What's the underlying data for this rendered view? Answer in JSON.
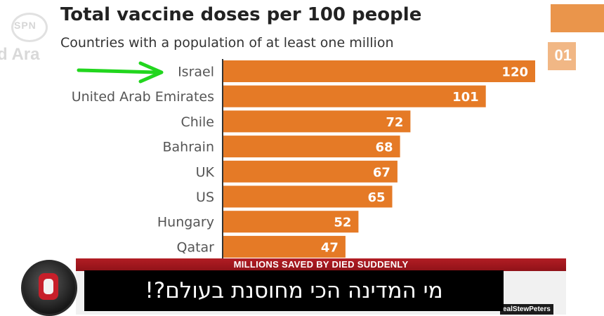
{
  "background": {
    "left_text": "d Ara",
    "logo_text": "SPN",
    "right_value_partial": "01"
  },
  "chart_data": {
    "type": "bar",
    "orientation": "horizontal",
    "title": "Total vaccine doses per 100 people",
    "subtitle": "Countries with a population of at least one million",
    "categories": [
      "Israel",
      "United Arab Emirates",
      "Chile",
      "Bahrain",
      "UK",
      "US",
      "Hungary",
      "Qatar"
    ],
    "values": [
      120,
      101,
      72,
      68,
      67,
      65,
      52,
      47
    ],
    "xlim": [
      0,
      120
    ],
    "grid": false,
    "bar_color": "#e57a26",
    "annotation_arrow_color": "#22d61e",
    "annotation": "arrow pointing to Israel"
  },
  "overlay": {
    "ticker": "MILLIONS SAVED BY DIED SUDDENLY",
    "caption": "מי המדינה הכי מחוסנת בעולם?!",
    "handle": "ealStewPeters",
    "ticker_color": "#b21d24"
  }
}
